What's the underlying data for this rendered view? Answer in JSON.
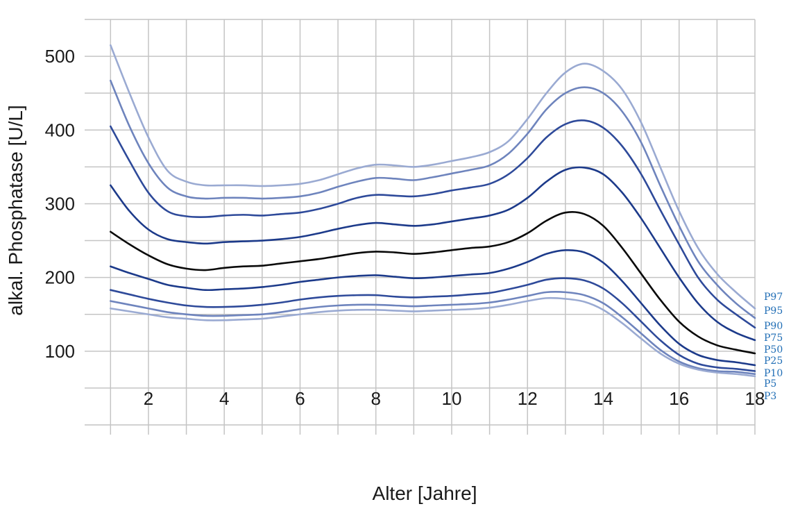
{
  "chart_data": {
    "type": "line",
    "title": "",
    "xlabel": "Alter [Jahre]",
    "ylabel": "alkal. Phosphatase [U/L]",
    "xlim": [
      0,
      18
    ],
    "ylim": [
      0,
      550
    ],
    "xticks": [
      2,
      4,
      6,
      8,
      10,
      12,
      14,
      16,
      18
    ],
    "yticks": [
      100,
      200,
      300,
      400,
      500
    ],
    "grid": true,
    "legend": "right-end labels",
    "x": [
      1,
      1.5,
      2,
      2.5,
      3,
      3.5,
      4,
      4.5,
      5,
      5.5,
      6,
      6.5,
      7,
      7.5,
      8,
      8.5,
      9,
      9.5,
      10,
      10.5,
      11,
      11.5,
      12,
      12.5,
      13,
      13.5,
      14,
      14.5,
      15,
      15.5,
      16,
      16.5,
      17,
      17.5,
      18
    ],
    "series": [
      {
        "name": "P97",
        "color": "#9aaad2",
        "values": [
          515,
          450,
          390,
          345,
          330,
          325,
          325,
          325,
          324,
          325,
          327,
          332,
          340,
          348,
          353,
          352,
          350,
          353,
          358,
          363,
          370,
          385,
          415,
          450,
          478,
          490,
          480,
          455,
          410,
          350,
          290,
          240,
          205,
          180,
          158
        ]
      },
      {
        "name": "P95",
        "color": "#6e84bd",
        "values": [
          467,
          405,
          355,
          322,
          310,
          307,
          308,
          308,
          307,
          308,
          310,
          315,
          323,
          330,
          335,
          334,
          332,
          336,
          341,
          346,
          352,
          368,
          395,
          428,
          450,
          458,
          450,
          425,
          383,
          325,
          270,
          222,
          190,
          165,
          145
        ]
      },
      {
        "name": "P90",
        "color": "#2e4a9a",
        "values": [
          405,
          358,
          315,
          290,
          283,
          282,
          284,
          285,
          284,
          286,
          288,
          293,
          300,
          308,
          312,
          311,
          310,
          313,
          318,
          322,
          327,
          340,
          362,
          390,
          408,
          413,
          403,
          378,
          340,
          292,
          245,
          200,
          170,
          150,
          132
        ]
      },
      {
        "name": "P75",
        "color": "#1c3a8a",
        "values": [
          325,
          290,
          265,
          252,
          248,
          246,
          248,
          249,
          250,
          252,
          255,
          260,
          266,
          271,
          274,
          272,
          270,
          272,
          276,
          280,
          284,
          292,
          308,
          330,
          346,
          349,
          340,
          315,
          280,
          240,
          200,
          165,
          140,
          125,
          115
        ]
      },
      {
        "name": "P50",
        "color": "#0a0a0a",
        "values": [
          262,
          245,
          230,
          218,
          212,
          210,
          213,
          215,
          216,
          219,
          222,
          225,
          229,
          233,
          235,
          234,
          232,
          234,
          237,
          240,
          242,
          248,
          260,
          277,
          288,
          286,
          270,
          240,
          205,
          170,
          140,
          120,
          108,
          102,
          97
        ]
      },
      {
        "name": "P25",
        "color": "#1c3a8a",
        "values": [
          215,
          206,
          198,
          190,
          186,
          183,
          184,
          185,
          187,
          190,
          194,
          197,
          200,
          202,
          203,
          201,
          199,
          200,
          202,
          204,
          206,
          212,
          221,
          232,
          237,
          234,
          220,
          195,
          165,
          135,
          110,
          95,
          88,
          85,
          81
        ]
      },
      {
        "name": "P10",
        "color": "#2e4a9a",
        "values": [
          183,
          177,
          171,
          166,
          162,
          160,
          160,
          161,
          163,
          166,
          170,
          173,
          175,
          176,
          176,
          174,
          173,
          174,
          175,
          177,
          179,
          184,
          190,
          197,
          199,
          196,
          185,
          165,
          140,
          115,
          95,
          83,
          78,
          76,
          73
        ]
      },
      {
        "name": "P5",
        "color": "#6e84bd",
        "values": [
          168,
          163,
          158,
          153,
          150,
          148,
          148,
          149,
          150,
          153,
          157,
          160,
          162,
          163,
          163,
          162,
          161,
          162,
          163,
          164,
          166,
          170,
          175,
          180,
          180,
          176,
          165,
          146,
          124,
          102,
          86,
          77,
          73,
          72,
          69
        ]
      },
      {
        "name": "P3",
        "color": "#9aaad2",
        "values": [
          158,
          154,
          150,
          146,
          144,
          142,
          142,
          143,
          144,
          147,
          150,
          153,
          155,
          156,
          156,
          155,
          154,
          155,
          156,
          157,
          159,
          163,
          168,
          172,
          171,
          167,
          156,
          138,
          117,
          97,
          83,
          75,
          71,
          69,
          66
        ]
      }
    ]
  }
}
